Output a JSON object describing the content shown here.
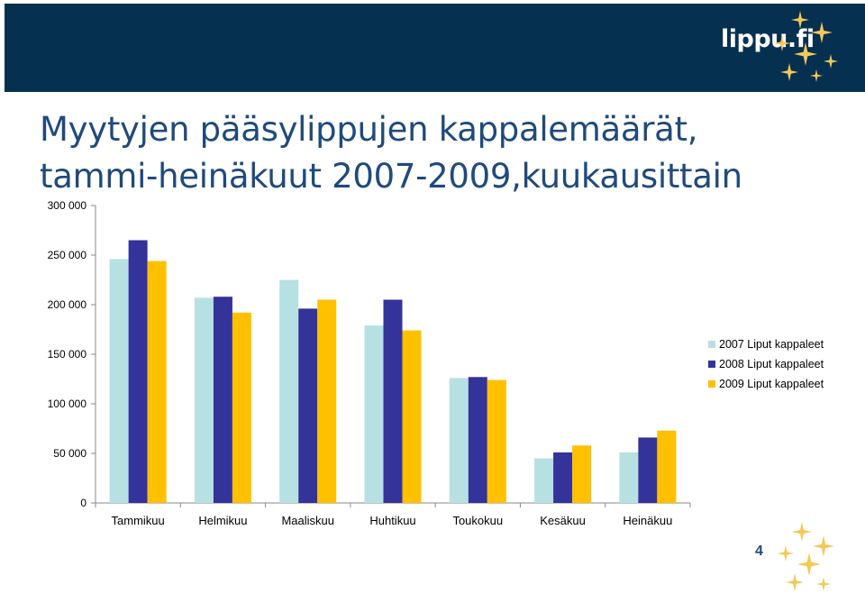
{
  "header": {
    "logo_text": "lippu.fi"
  },
  "title": {
    "line1": "Myytyjen pääsylippujen kappalemäärät,",
    "line2": "tammi-heinäkuut 2007-2009,kuukausittain"
  },
  "page_number": "4",
  "colors": {
    "header_bg": "#06304f",
    "title": "#1f4a7c",
    "sparkle": "#f3c85a"
  },
  "chart_data": {
    "type": "bar",
    "title": "",
    "xlabel": "",
    "ylabel": "",
    "ylim": [
      0,
      300000
    ],
    "yticks": [
      0,
      50000,
      100000,
      150000,
      200000,
      250000,
      300000
    ],
    "ytick_labels": [
      "0",
      "50 000",
      "100 000",
      "150 000",
      "200 000",
      "250 000",
      "300 000"
    ],
    "categories": [
      "Tammikuu",
      "Helmikuu",
      "Maaliskuu",
      "Huhtikuu",
      "Toukokuu",
      "Kesäkuu",
      "Heinäkuu"
    ],
    "series": [
      {
        "name": "2007 Liput kappaleet",
        "color": "#b7e0e3",
        "values": [
          246000,
          207000,
          225000,
          179000,
          126000,
          45000,
          51000
        ]
      },
      {
        "name": "2008 Liput kappaleet",
        "color": "#333399",
        "values": [
          265000,
          208000,
          196000,
          205000,
          127000,
          51000,
          66000
        ]
      },
      {
        "name": "2009 Liput kappaleet",
        "color": "#ffc000",
        "values": [
          244000,
          192000,
          205000,
          174000,
          124000,
          58000,
          73000
        ]
      }
    ],
    "legend_position": "right",
    "grid": false
  }
}
